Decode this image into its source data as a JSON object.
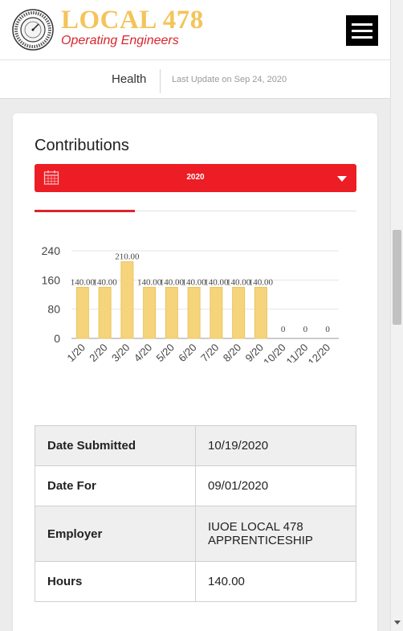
{
  "header": {
    "brand_title": "LOCAL 478",
    "brand_subtitle": "Operating Engineers",
    "menu_icon": "hamburger-menu-icon",
    "seal_icon": "union-seal-logo"
  },
  "subbar": {
    "section": "Health",
    "last_update": "Last Update on Sep 24, 2020"
  },
  "contributions": {
    "title": "Contributions",
    "year": "2020",
    "calendar_icon": "calendar-icon",
    "dropdown_icon": "caret-down-icon"
  },
  "colors": {
    "accent_red": "#ec1d24",
    "brand_gold": "#f4c45a",
    "bar_fill": "#f5d47c"
  },
  "chart_data": {
    "type": "bar",
    "categories": [
      "1/20",
      "2/20",
      "3/20",
      "4/20",
      "5/20",
      "6/20",
      "7/20",
      "8/20",
      "9/20",
      "10/20",
      "11/20",
      "12/20"
    ],
    "values": [
      140,
      140,
      210,
      140,
      140,
      140,
      140,
      140,
      140,
      0,
      0,
      0
    ],
    "data_labels": [
      "140.00",
      "140.00",
      "210.00",
      "140.00",
      "140.00",
      "140.00",
      "140.00",
      "140.00",
      "140.00",
      "0",
      "0",
      "0"
    ],
    "yticks": [
      "0",
      "80",
      "160",
      "240"
    ],
    "ylim": [
      0,
      240
    ],
    "grid": true
  },
  "details": {
    "rows": [
      {
        "label": "Date Submitted",
        "value": "10/19/2020"
      },
      {
        "label": "Date For",
        "value": "09/01/2020"
      },
      {
        "label": "Employer",
        "value": "IUOE LOCAL 478 APPRENTICESHIP"
      },
      {
        "label": "Hours",
        "value": "140.00"
      }
    ]
  }
}
